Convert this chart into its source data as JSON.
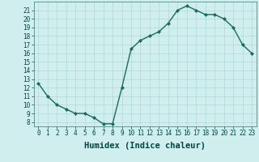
{
  "x": [
    0,
    1,
    2,
    3,
    4,
    5,
    6,
    7,
    8,
    9,
    10,
    11,
    12,
    13,
    14,
    15,
    16,
    17,
    18,
    19,
    20,
    21,
    22,
    23
  ],
  "y": [
    12.5,
    11.0,
    10.0,
    9.5,
    9.0,
    9.0,
    8.5,
    7.8,
    7.8,
    12.0,
    16.5,
    17.5,
    18.0,
    18.5,
    19.5,
    21.0,
    21.5,
    21.0,
    20.5,
    20.5,
    20.0,
    19.0,
    17.0,
    16.0
  ],
  "line_color": "#1a6b5a",
  "marker": "D",
  "marker_size": 2.0,
  "bg_color": "#d0eeee",
  "grid_color": "#b0d8d8",
  "xlabel": "Humidex (Indice chaleur)",
  "xlim": [
    -0.5,
    23.5
  ],
  "ylim": [
    7.5,
    22.0
  ],
  "xticks": [
    0,
    1,
    2,
    3,
    4,
    5,
    6,
    7,
    8,
    9,
    10,
    11,
    12,
    13,
    14,
    15,
    16,
    17,
    18,
    19,
    20,
    21,
    22,
    23
  ],
  "yticks": [
    8,
    9,
    10,
    11,
    12,
    13,
    14,
    15,
    16,
    17,
    18,
    19,
    20,
    21
  ],
  "tick_labelsize": 5.5,
  "xlabel_fontsize": 7.5,
  "line_width": 1.0,
  "xlabel_color": "#004444",
  "tick_color": "#004444",
  "axis_color": "#558888"
}
